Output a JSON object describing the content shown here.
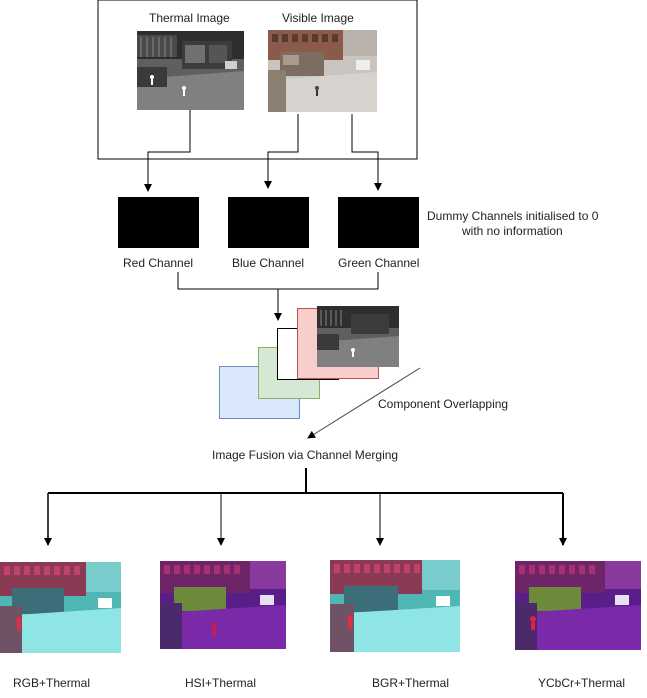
{
  "inputs": {
    "thermal_label": "Thermal Image",
    "visible_label": "Visible Image"
  },
  "channels": {
    "red": "Red Channel",
    "blue": "Blue Channel",
    "green": "Green Channel",
    "dummy_note_line1": "Dummy Channels initialised to 0",
    "dummy_note_line2": "with no information"
  },
  "overlap_label": "Component Overlapping",
  "fusion_label": "Image Fusion via Channel Merging",
  "outputs": [
    {
      "label": "RGB+Thermal"
    },
    {
      "label": "HSI+Thermal"
    },
    {
      "label": "BGR+Thermal"
    },
    {
      "label": "YCbCr+Thermal"
    }
  ],
  "colors": {
    "layer_blue_fill": "#dae8fc",
    "layer_blue_border": "#6c8ebf",
    "layer_green_fill": "#d5e8d4",
    "layer_green_border": "#82b366",
    "layer_red_fill": "#f8cecc",
    "layer_red_border": "#b85450"
  }
}
